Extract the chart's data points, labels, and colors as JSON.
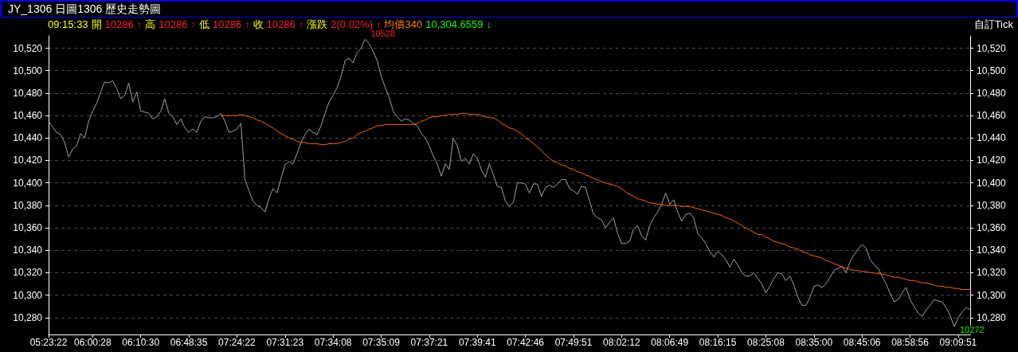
{
  "chart_data": {
    "type": "line",
    "title": "JY_1306 日圖1306  歷史走勢圖",
    "categories": [
      "05:23:22",
      null,
      null,
      null,
      null,
      null,
      null,
      null,
      null,
      null,
      null,
      "06:00:28",
      null,
      null,
      null,
      null,
      null,
      null,
      null,
      null,
      null,
      null,
      null,
      "06:10:30",
      null,
      null,
      null,
      null,
      null,
      null,
      null,
      null,
      null,
      null,
      null,
      "06:48:35",
      null,
      null,
      null,
      null,
      null,
      null,
      null,
      null,
      null,
      null,
      null,
      "07:24:22",
      null,
      null,
      null,
      null,
      null,
      null,
      null,
      null,
      null,
      null,
      null,
      "07:31:23",
      null,
      null,
      null,
      null,
      null,
      null,
      null,
      null,
      null,
      null,
      null,
      "07:34:08",
      null,
      null,
      null,
      null,
      null,
      null,
      null,
      null,
      null,
      null,
      null,
      "07:35:09",
      null,
      null,
      null,
      null,
      null,
      null,
      null,
      null,
      null,
      null,
      null,
      "07:37:21",
      null,
      null,
      null,
      null,
      null,
      null,
      null,
      null,
      null,
      null,
      null,
      "07:39:41",
      null,
      null,
      null,
      null,
      null,
      null,
      null,
      null,
      null,
      null,
      null,
      "07:42:46",
      null,
      null,
      null,
      null,
      null,
      null,
      null,
      null,
      null,
      null,
      null,
      "07:49:51",
      null,
      null,
      null,
      null,
      null,
      null,
      null,
      null,
      null,
      null,
      null,
      "08:02:12",
      null,
      null,
      null,
      null,
      null,
      null,
      null,
      null,
      null,
      null,
      null,
      "08:06:49",
      null,
      null,
      null,
      null,
      null,
      null,
      null,
      null,
      null,
      null,
      null,
      "08:16:15",
      null,
      null,
      null,
      null,
      null,
      null,
      null,
      null,
      null,
      null,
      null,
      "08:25:08",
      null,
      null,
      null,
      null,
      null,
      null,
      null,
      null,
      null,
      null,
      null,
      "08:35:00",
      null,
      null,
      null,
      null,
      null,
      null,
      null,
      null,
      null,
      null,
      null,
      "08:45:06",
      null,
      null,
      null,
      null,
      null,
      null,
      null,
      null,
      null,
      null,
      null,
      "08:58:56",
      null,
      null,
      null,
      null,
      null,
      null,
      null,
      null,
      null,
      null,
      null,
      "09:09:51",
      null,
      null,
      null
    ],
    "series": [
      {
        "color": "#a0a0a0",
        "values": [
          10455,
          10450,
          10445,
          10443,
          10436,
          10423,
          10430,
          10433,
          10444,
          10440,
          10455,
          10464,
          10471,
          10481,
          10490,
          10489,
          10491,
          10484,
          10475,
          10478,
          10489,
          10472,
          10481,
          10464,
          10463,
          10462,
          10457,
          10459,
          10464,
          10475,
          10462,
          10459,
          10452,
          10457,
          10449,
          10445,
          10448,
          10445,
          10455,
          10459,
          10458,
          10458,
          10459,
          10462,
          10455,
          10445,
          10446,
          10448,
          10453,
          10403,
          10393,
          10384,
          10380,
          10378,
          10374,
          10386,
          10395,
          10391,
          10404,
          10416,
          10419,
          10417,
          10426,
          10436,
          10443,
          10448,
          10445,
          10443,
          10451,
          10462,
          10472,
          10478,
          10485,
          10495,
          10509,
          10511,
          10507,
          10516,
          10520,
          10528,
          10524,
          10517,
          10509,
          10495,
          10485,
          10476,
          10464,
          10459,
          10455,
          10457,
          10456,
          10453,
          10451,
          10444,
          10440,
          10433,
          10424,
          10417,
          10406,
          10417,
          10412,
          10440,
          10433,
          10419,
          10422,
          10417,
          10426,
          10422,
          10412,
          10405,
          10417,
          10407,
          10397,
          10396,
          10384,
          10379,
          10383,
          10400,
          10400,
          10399,
          10391,
          10399,
          10399,
          10388,
          10396,
          10398,
          10396,
          10399,
          10403,
          10403,
          10395,
          10393,
          10390,
          10397,
          10396,
          10384,
          10372,
          10369,
          10367,
          10360,
          10365,
          10369,
          10355,
          10346,
          10346,
          10348,
          10359,
          10362,
          10353,
          10349,
          10362,
          10369,
          10374,
          10381,
          10391,
          10381,
          10385,
          10374,
          10366,
          10372,
          10373,
          10369,
          10355,
          10351,
          10346,
          10339,
          10334,
          10339,
          10336,
          10332,
          10325,
          10332,
          10327,
          10320,
          10317,
          10317,
          10320,
          10315,
          10310,
          10302,
          10308,
          10315,
          10320,
          10319,
          10313,
          10317,
          10309,
          10298,
          10291,
          10291,
          10298,
          10308,
          10309,
          10307,
          10310,
          10316,
          10322,
          10324,
          10326,
          10320,
          10330,
          10336,
          10341,
          10345,
          10342,
          10332,
          10327,
          10324,
          10317,
          10310,
          10302,
          10294,
          10296,
          10302,
          10307,
          10296,
          10290,
          10284,
          10281,
          10287,
          10291,
          10296,
          10295,
          10294,
          10289,
          10282,
          10272,
          10280,
          10285,
          10289,
          10287
        ]
      },
      {
        "color": "#ff6600",
        "values": [
          null,
          null,
          null,
          null,
          null,
          null,
          null,
          null,
          null,
          null,
          null,
          null,
          null,
          null,
          null,
          null,
          null,
          null,
          null,
          null,
          null,
          null,
          null,
          null,
          null,
          null,
          null,
          null,
          null,
          null,
          null,
          null,
          null,
          null,
          null,
          null,
          null,
          null,
          null,
          null,
          null,
          null,
          null,
          10460,
          10460,
          10460,
          10460,
          10460,
          10461,
          10460,
          10459,
          10458,
          10456,
          10455,
          10453,
          10451,
          10449,
          10446,
          10444,
          10442,
          10440,
          10439,
          10437,
          10436,
          10436,
          10435,
          10435,
          10435,
          10434,
          10434,
          10435,
          10435,
          10435,
          10436,
          10437,
          10439,
          10440,
          10443,
          10445,
          10446,
          10448,
          10449,
          10451,
          10451,
          10452,
          10452,
          10452,
          10452,
          10452,
          10452,
          10452,
          10452,
          10453,
          10455,
          10456,
          10458,
          10459,
          10459,
          10460,
          10460,
          10461,
          10461,
          10461,
          10462,
          10462,
          10461,
          10461,
          10461,
          10460,
          10459,
          10458,
          10458,
          10456,
          10453,
          10451,
          10449,
          10448,
          10446,
          10444,
          10440,
          10438,
          10435,
          10432,
          10429,
          10425,
          10422,
          10419,
          10418,
          10416,
          10415,
          10413,
          10412,
          10410,
          10409,
          10407,
          10406,
          10404,
          10403,
          10401,
          10400,
          10399,
          10398,
          10397,
          10395,
          10392,
          10390,
          10388,
          10386,
          10385,
          10384,
          10382,
          10382,
          10381,
          10381,
          10380,
          10380,
          10380,
          10380,
          10379,
          10379,
          10379,
          10378,
          10377,
          10376,
          10375,
          10374,
          10373,
          10372,
          10371,
          10369,
          10368,
          10366,
          10364,
          10362,
          10360,
          10358,
          10356,
          10354,
          10354,
          10352,
          10350,
          10348,
          10347,
          10346,
          10345,
          10343,
          10342,
          10341,
          10339,
          10338,
          10336,
          10335,
          10334,
          10333,
          10331,
          10330,
          10328,
          10327,
          10325,
          10324,
          10323,
          10322,
          10322,
          10321,
          10321,
          10320,
          10320,
          10319,
          10319,
          10318,
          10317,
          10316,
          10316,
          10315,
          10314,
          10313,
          10313,
          10312,
          10311,
          10311,
          10310,
          10309,
          10308,
          10308,
          10307,
          10307,
          10306,
          10306,
          10305,
          10305,
          10305
        ]
      }
    ],
    "ylim": [
      10265,
      10531
    ],
    "yticks": [
      {
        "value": 10280,
        "label": "10,280"
      },
      {
        "value": 10300,
        "label": "10,300"
      },
      {
        "value": 10320,
        "label": "10,320"
      },
      {
        "value": 10340,
        "label": "10,340"
      },
      {
        "value": 10360,
        "label": "10,360"
      },
      {
        "value": 10380,
        "label": "10,380"
      },
      {
        "value": 10400,
        "label": "10,400"
      },
      {
        "value": 10420,
        "label": "10,420"
      },
      {
        "value": 10440,
        "label": "10,440"
      },
      {
        "value": 10460,
        "label": "10,460"
      },
      {
        "value": 10480,
        "label": "10,480"
      },
      {
        "value": 10500,
        "label": "10,500"
      },
      {
        "value": 10520,
        "label": "10,520"
      }
    ],
    "y2lim": [
      10265,
      10531
    ],
    "y2ticks": [
      {
        "value": 10280,
        "label": "10,280"
      },
      {
        "value": 10300,
        "label": "10,300"
      },
      {
        "value": 10320,
        "label": "10,320"
      },
      {
        "value": 10340,
        "label": "10,340"
      },
      {
        "value": 10360,
        "label": "10,360"
      },
      {
        "value": 10380,
        "label": "10,380"
      },
      {
        "value": 10400,
        "label": "10,400"
      },
      {
        "value": 10420,
        "label": "10,420"
      },
      {
        "value": 10440,
        "label": "10,440"
      },
      {
        "value": 10460,
        "label": "10,460"
      },
      {
        "value": 10480,
        "label": "10,480"
      },
      {
        "value": 10500,
        "label": "10,500"
      },
      {
        "value": 10520,
        "label": "10,520"
      }
    ],
    "grid": "y",
    "marker": "none",
    "line_style": "solid",
    "annotations": [
      "09:15:33",
      "開",
      "10286",
      "↑",
      "高",
      "10286",
      "↑",
      "低",
      "10286",
      "↑",
      "收",
      "10286",
      "↑",
      "漲跌",
      "2(0.02%)",
      "↑",
      "均價340",
      "10,304.6559",
      "↓",
      "10528",
      "10272",
      "自訂Tick"
    ]
  }
}
